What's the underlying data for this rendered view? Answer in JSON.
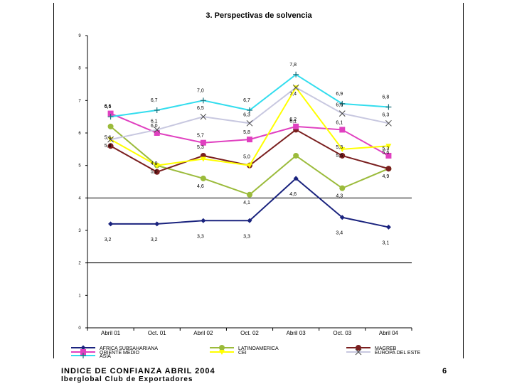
{
  "footer": {
    "line1": "INDICE DE CONFIANZA ABRIL 2004",
    "line2": "Iberglobal    Club de Exportadores",
    "page": "6"
  },
  "chart_data": {
    "type": "line",
    "title": "3. Perspectivas de solvencia",
    "categories": [
      "Abril 01",
      "Oct. 01",
      "Abril 02",
      "Oct. 02",
      "Abril 03",
      "Oct. 03",
      "Abril 04"
    ],
    "ylim": [
      0,
      9
    ],
    "yticks": [
      "0",
      "1",
      "2",
      "3",
      "4",
      "5",
      "6",
      "7",
      "8",
      "9"
    ],
    "grid": "horizontal lines at 2 and 4",
    "legend_position": "bottom",
    "series": [
      {
        "name": "AFRICA SUBSAHARIANA",
        "color": "#1a237e",
        "marker": "diamond",
        "values": [
          3.2,
          3.2,
          3.3,
          3.3,
          4.6,
          3.4,
          3.1
        ],
        "labels": [
          "3,2",
          "3,2",
          "3,3",
          "3,3",
          "4,6",
          "3,4",
          "3,1"
        ]
      },
      {
        "name": "LATINOAMERICA",
        "color": "#9bbb3b",
        "marker": "none",
        "values": [
          6.2,
          5.0,
          4.6,
          4.1,
          5.3,
          4.3,
          4.9
        ],
        "labels": [
          "",
          "",
          "4,6",
          "4,1",
          "",
          "4,3",
          "4,9"
        ]
      },
      {
        "name": "MAGREB",
        "color": "#7a1f1f",
        "marker": "none",
        "values": [
          5.6,
          4.8,
          5.3,
          5.0,
          6.1,
          5.3,
          4.9
        ],
        "labels": [
          "5,6",
          "4,8",
          "5,3",
          "5,0",
          "6,1",
          "5,3",
          ""
        ]
      },
      {
        "name": "ORIENTE MEDIO",
        "color": "#e040c0",
        "marker": "square",
        "values": [
          6.6,
          6.0,
          5.7,
          5.8,
          6.2,
          6.1,
          5.3
        ],
        "labels": [
          "6,6",
          "6,0",
          "5,7",
          "5,8",
          "6,2",
          "6,1",
          "5,3"
        ]
      },
      {
        "name": "CEI",
        "color": "#ffff00",
        "marker": "triangle",
        "values": [
          5.8,
          5.0,
          5.2,
          5.0,
          7.4,
          5.5,
          5.6
        ],
        "labels": [
          "5,8",
          "5,0",
          "",
          "",
          "7,4",
          "5,5",
          "5,6"
        ]
      },
      {
        "name": "EUROPA DEL ESTE",
        "color": "#c8c8e0",
        "marker": "x",
        "values": [
          5.8,
          6.1,
          6.5,
          6.3,
          7.4,
          6.6,
          6.3
        ],
        "labels": [
          "",
          "6,1",
          "6,5",
          "6,3",
          "",
          "6,6",
          "6,3"
        ]
      },
      {
        "name": "ASIA",
        "color": "#33ddee",
        "marker": "plus",
        "values": [
          6.5,
          6.7,
          7.0,
          6.7,
          7.8,
          6.9,
          6.8
        ],
        "labels": [
          "6,5",
          "6,7",
          "7,0",
          "6,7",
          "7,8",
          "6,9",
          "6,8"
        ]
      }
    ]
  }
}
